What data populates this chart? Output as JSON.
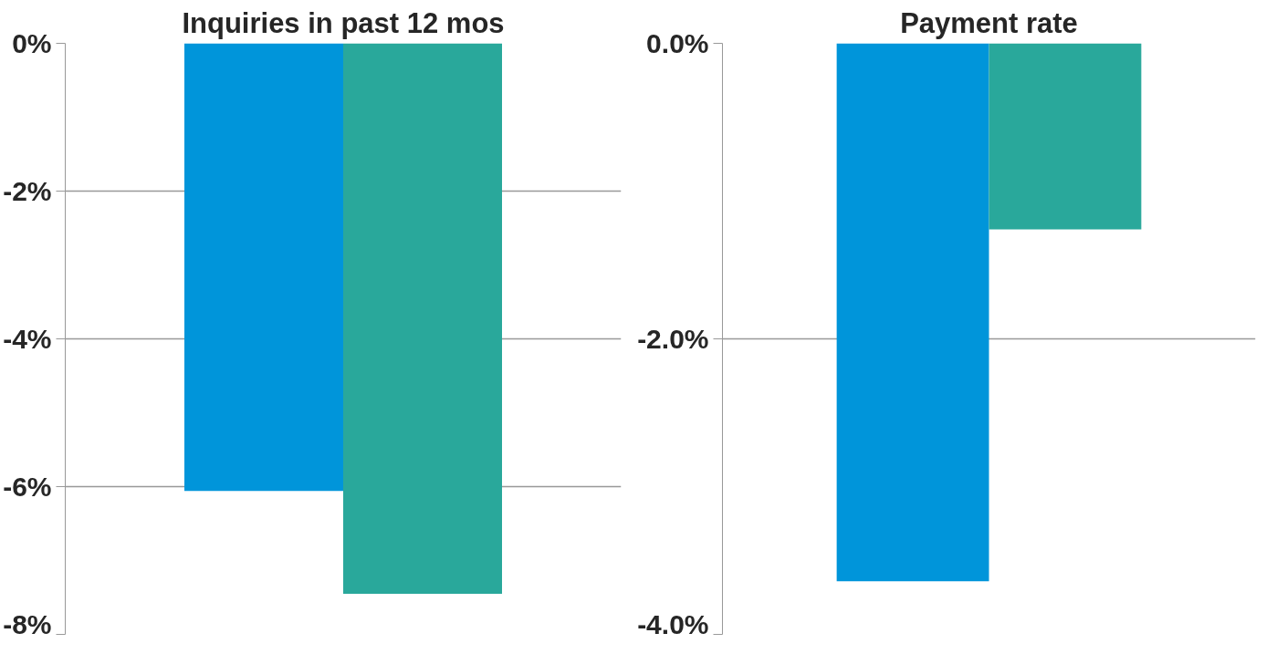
{
  "chart_data": [
    {
      "type": "bar",
      "title": "Inquiries in past 12 mos",
      "categories": [
        null,
        null
      ],
      "values": [
        -6.06,
        -7.45
      ],
      "colors": [
        "#0095da",
        "#29a89b"
      ],
      "ylim": [
        -8,
        0
      ],
      "yticks": [
        {
          "value": 0,
          "label": "0%"
        },
        {
          "value": -2,
          "label": "-2%"
        },
        {
          "value": -4,
          "label": "-4%"
        },
        {
          "value": -6,
          "label": "-6%"
        },
        {
          "value": -8,
          "label": "-8%"
        }
      ],
      "grid": "y"
    },
    {
      "type": "bar",
      "title": "Payment rate",
      "categories": [
        null,
        null
      ],
      "values": [
        -3.64,
        -1.26
      ],
      "colors": [
        "#0095da",
        "#29a89b"
      ],
      "ylim": [
        -4,
        0
      ],
      "yticks": [
        {
          "value": 0,
          "label": "0.0%"
        },
        {
          "value": -2,
          "label": "-2.0%"
        },
        {
          "value": -4,
          "label": "-4.0%"
        }
      ],
      "grid": "y"
    }
  ]
}
